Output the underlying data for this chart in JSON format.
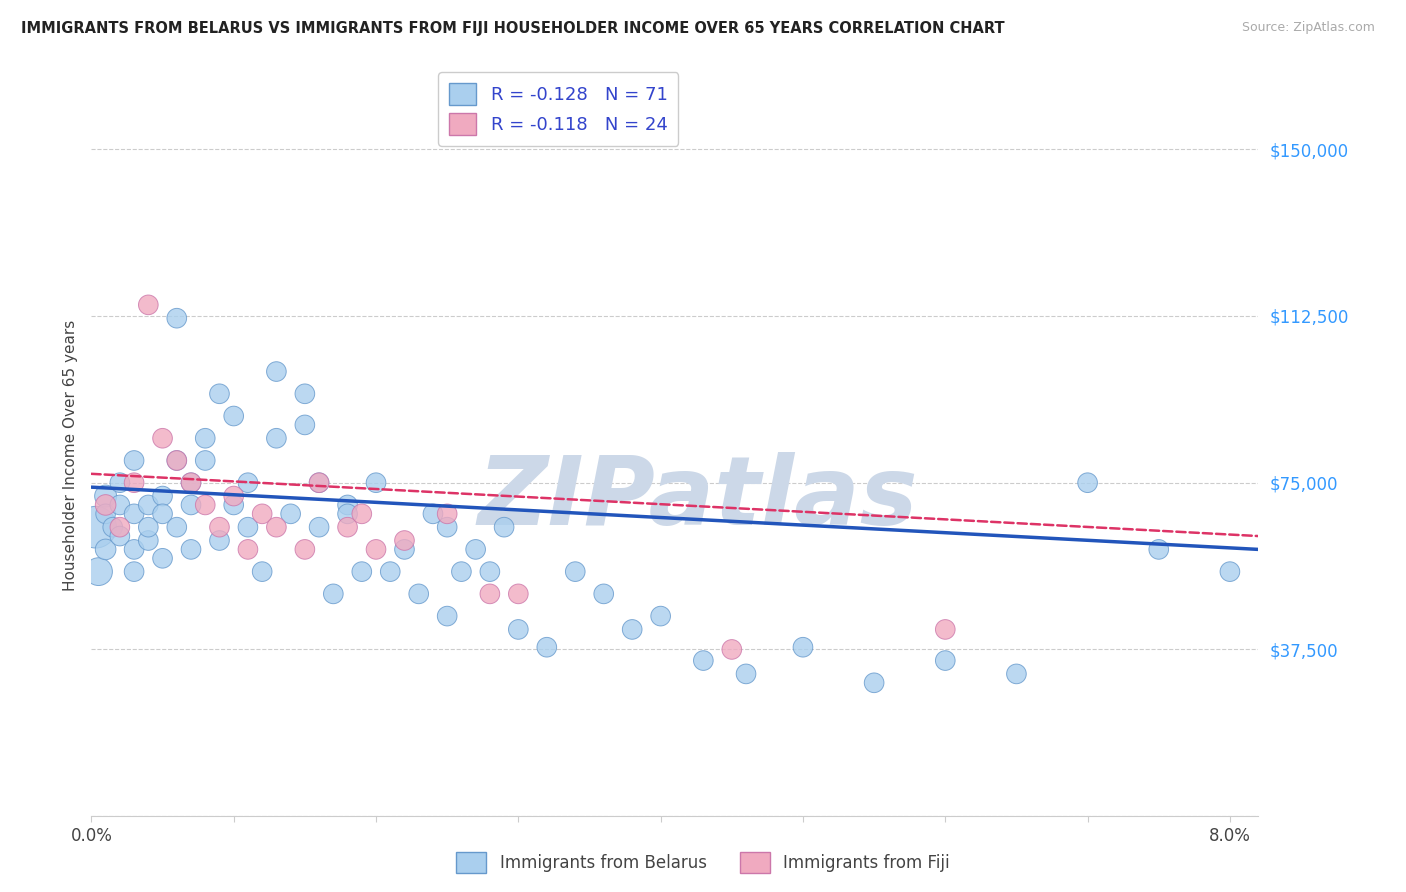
{
  "title": "IMMIGRANTS FROM BELARUS VS IMMIGRANTS FROM FIJI HOUSEHOLDER INCOME OVER 65 YEARS CORRELATION CHART",
  "source": "Source: ZipAtlas.com",
  "ylabel": "Householder Income Over 65 years",
  "xlim": [
    0.0,
    0.082
  ],
  "ylim": [
    0,
    162500
  ],
  "yticks": [
    0,
    37500,
    75000,
    112500,
    150000
  ],
  "ytick_labels": [
    "",
    "$37,500",
    "$75,000",
    "$112,500",
    "$150,000"
  ],
  "legend_R1": "R = -0.128",
  "legend_N1": "N = 71",
  "legend_R2": "R = -0.118",
  "legend_N2": "N = 24",
  "series1_color": "#aacfee",
  "series1_edge": "#6699cc",
  "series2_color": "#f0aac0",
  "series2_edge": "#cc77aa",
  "line1_color": "#2255bb",
  "line2_color": "#dd3366",
  "watermark": "ZIPatlas",
  "watermark_color": "#ccd8e8",
  "background_color": "#ffffff",
  "Belarus_x": [
    0.0003,
    0.0005,
    0.001,
    0.001,
    0.001,
    0.0015,
    0.002,
    0.002,
    0.002,
    0.003,
    0.003,
    0.003,
    0.003,
    0.004,
    0.004,
    0.004,
    0.005,
    0.005,
    0.005,
    0.006,
    0.006,
    0.006,
    0.007,
    0.007,
    0.007,
    0.008,
    0.008,
    0.009,
    0.009,
    0.01,
    0.01,
    0.011,
    0.011,
    0.012,
    0.013,
    0.013,
    0.014,
    0.015,
    0.015,
    0.016,
    0.016,
    0.017,
    0.018,
    0.018,
    0.019,
    0.02,
    0.021,
    0.022,
    0.023,
    0.024,
    0.025,
    0.025,
    0.026,
    0.027,
    0.028,
    0.029,
    0.03,
    0.032,
    0.034,
    0.036,
    0.038,
    0.04,
    0.043,
    0.046,
    0.05,
    0.055,
    0.06,
    0.065,
    0.07,
    0.075,
    0.08
  ],
  "Belarus_y": [
    65000,
    55000,
    72000,
    60000,
    68000,
    65000,
    70000,
    63000,
    75000,
    60000,
    68000,
    55000,
    80000,
    62000,
    70000,
    65000,
    58000,
    72000,
    68000,
    80000,
    112000,
    65000,
    70000,
    75000,
    60000,
    85000,
    80000,
    62000,
    95000,
    70000,
    90000,
    65000,
    75000,
    55000,
    100000,
    85000,
    68000,
    95000,
    88000,
    75000,
    65000,
    50000,
    70000,
    68000,
    55000,
    75000,
    55000,
    60000,
    50000,
    68000,
    65000,
    45000,
    55000,
    60000,
    55000,
    65000,
    42000,
    38000,
    55000,
    50000,
    42000,
    45000,
    35000,
    32000,
    38000,
    30000,
    35000,
    32000,
    75000,
    60000,
    55000
  ],
  "Belarus_size": [
    900,
    400,
    250,
    220,
    200,
    200,
    200,
    200,
    200,
    200,
    200,
    200,
    200,
    200,
    200,
    200,
    200,
    200,
    200,
    200,
    200,
    200,
    200,
    200,
    200,
    200,
    200,
    200,
    200,
    200,
    200,
    200,
    200,
    200,
    200,
    200,
    200,
    200,
    200,
    200,
    200,
    200,
    200,
    200,
    200,
    200,
    200,
    200,
    200,
    200,
    200,
    200,
    200,
    200,
    200,
    200,
    200,
    200,
    200,
    200,
    200,
    200,
    200,
    200,
    200,
    200,
    200,
    200,
    200,
    200,
    200
  ],
  "Fiji_x": [
    0.001,
    0.002,
    0.003,
    0.004,
    0.005,
    0.006,
    0.007,
    0.008,
    0.009,
    0.01,
    0.011,
    0.012,
    0.013,
    0.015,
    0.016,
    0.018,
    0.019,
    0.02,
    0.022,
    0.025,
    0.028,
    0.03,
    0.045,
    0.06
  ],
  "Fiji_y": [
    70000,
    65000,
    75000,
    115000,
    85000,
    80000,
    75000,
    70000,
    65000,
    72000,
    60000,
    68000,
    65000,
    60000,
    75000,
    65000,
    68000,
    60000,
    62000,
    68000,
    50000,
    50000,
    37500,
    42000
  ],
  "Fiji_size": [
    220,
    200,
    200,
    200,
    200,
    200,
    200,
    200,
    200,
    200,
    200,
    200,
    200,
    200,
    200,
    200,
    200,
    200,
    200,
    200,
    200,
    200,
    200,
    200
  ],
  "line1_y0": 74000,
  "line1_y1": 60000,
  "line2_y0": 77000,
  "line2_y1": 63000
}
